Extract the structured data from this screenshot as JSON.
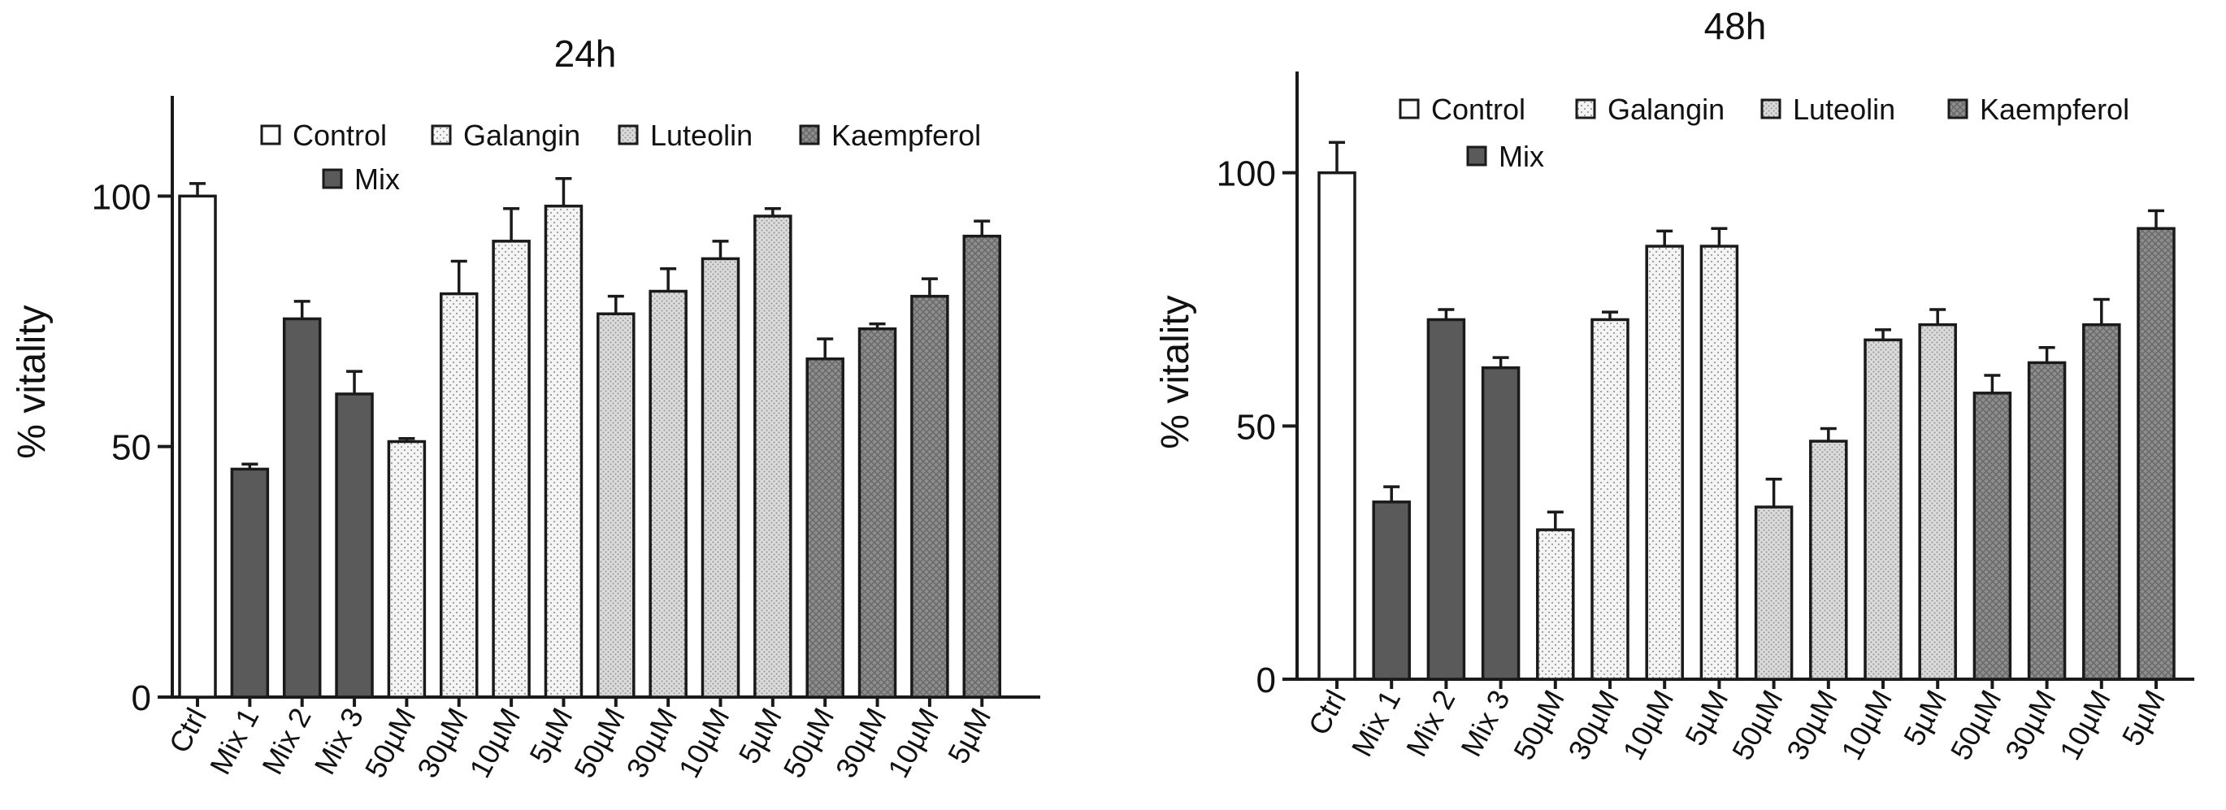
{
  "chart_data": [
    {
      "type": "bar",
      "title": "24h",
      "ylabel": "% vitality",
      "xlabel": "",
      "ylim": [
        0,
        120
      ],
      "yticks": [
        0,
        50,
        100
      ],
      "legend": [
        {
          "label": "Control",
          "group": "control"
        },
        {
          "label": "Galangin",
          "group": "galangin"
        },
        {
          "label": "Luteolin",
          "group": "luteolin"
        },
        {
          "label": "Kaempferol",
          "group": "kaempferol"
        },
        {
          "label": "Mix",
          "group": "mix"
        }
      ],
      "categories": [
        "Ctrl",
        "Mix 1",
        "Mix 2",
        "Mix 3",
        "50µM",
        "30µM",
        "10µM",
        "5µM",
        "50µM",
        "30µM",
        "10µM",
        "5µM",
        "50µM",
        "30µM",
        "10µM",
        "5µM"
      ],
      "groups": [
        "control",
        "mix",
        "mix",
        "mix",
        "galangin",
        "galangin",
        "galangin",
        "galangin",
        "luteolin",
        "luteolin",
        "luteolin",
        "luteolin",
        "kaempferol",
        "kaempferol",
        "kaempferol",
        "kaempferol"
      ],
      "values": [
        100,
        45.5,
        75.5,
        60.5,
        51,
        80.5,
        91,
        98,
        76.5,
        81,
        87.5,
        96,
        67.5,
        73.5,
        80,
        92
      ],
      "errors": [
        2.5,
        1.0,
        3.5,
        4.5,
        0.6,
        6.5,
        6.5,
        5.5,
        3.5,
        4.5,
        3.5,
        1.5,
        4.0,
        1.0,
        3.5,
        3.0
      ]
    },
    {
      "type": "bar",
      "title": "48h",
      "ylabel": "% vitality",
      "xlabel": "",
      "ylim": [
        0,
        120
      ],
      "yticks": [
        0,
        50,
        100
      ],
      "legend": [
        {
          "label": "Control",
          "group": "control"
        },
        {
          "label": "Galangin",
          "group": "galangin"
        },
        {
          "label": "Luteolin",
          "group": "luteolin"
        },
        {
          "label": "Kaempferol",
          "group": "kaempferol"
        },
        {
          "label": "Mix",
          "group": "mix"
        }
      ],
      "categories": [
        "Ctrl",
        "Mix 1",
        "Mix 2",
        "Mix 3",
        "50µM",
        "30µM",
        "10µM",
        "5µM",
        "50µM",
        "30µM",
        "10µM",
        "5µM",
        "50µM",
        "30µM",
        "10µM",
        "5µM"
      ],
      "groups": [
        "control",
        "mix",
        "mix",
        "mix",
        "galangin",
        "galangin",
        "galangin",
        "galangin",
        "luteolin",
        "luteolin",
        "luteolin",
        "luteolin",
        "kaempferol",
        "kaempferol",
        "kaempferol",
        "kaempferol"
      ],
      "values": [
        100,
        35,
        71,
        61.5,
        29.5,
        71,
        85.5,
        85.5,
        34,
        47,
        67,
        70,
        56.5,
        62.5,
        70,
        89
      ],
      "errors": [
        6,
        3,
        2,
        2,
        3.5,
        1.5,
        3,
        3.5,
        5.5,
        2.5,
        2,
        3,
        3.5,
        3,
        5,
        3.5
      ]
    }
  ],
  "colors": {
    "control": "#ffffff",
    "mix": "#5a5a5a",
    "galangin": "#f2f2f2",
    "luteolin": "#d6d6d6",
    "kaempferol": "#8c8c8c",
    "ink": "#1a1a1a"
  }
}
